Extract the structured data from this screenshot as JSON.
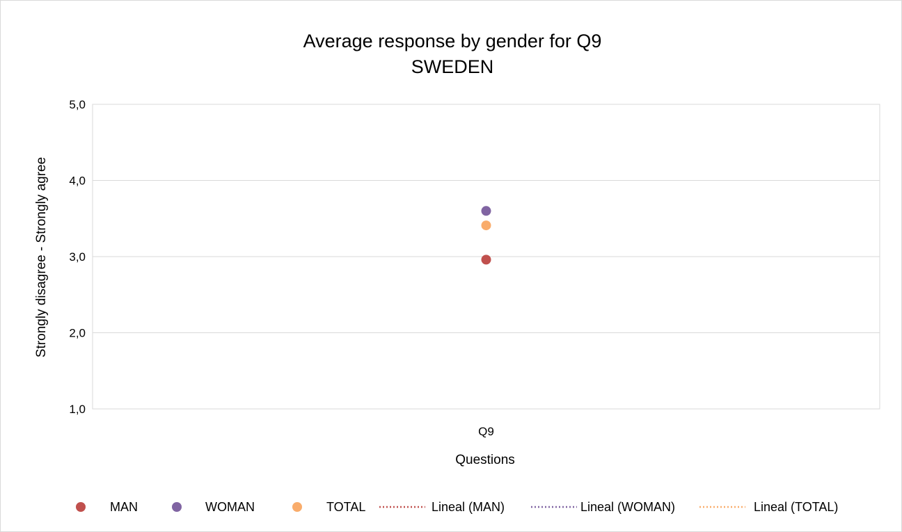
{
  "chart_data": {
    "type": "scatter",
    "title": "Average response by gender for Q9",
    "subtitle": "SWEDEN",
    "xlabel": "Questions",
    "ylabel": "Strongly disagree - Strongly agree",
    "categories": [
      "Q9"
    ],
    "ylim": [
      1.0,
      5.0
    ],
    "yticks": [
      "1,0",
      "2,0",
      "3,0",
      "4,0",
      "5,0"
    ],
    "ytick_values": [
      1.0,
      2.0,
      3.0,
      4.0,
      5.0
    ],
    "grid": true,
    "legend_position": "bottom",
    "series": [
      {
        "name": "MAN",
        "values": [
          2.96
        ],
        "color": "#c0504d"
      },
      {
        "name": "WOMAN",
        "values": [
          3.6
        ],
        "color": "#8064a2"
      },
      {
        "name": "TOTAL",
        "values": [
          3.41
        ],
        "color": "#f9ac6b"
      }
    ],
    "trendlines": [
      {
        "name": "Lineal (MAN)",
        "color": "#c0504d"
      },
      {
        "name": "Lineal (WOMAN)",
        "color": "#8064a2"
      },
      {
        "name": "Lineal (TOTAL)",
        "color": "#f9ac6b"
      }
    ]
  }
}
